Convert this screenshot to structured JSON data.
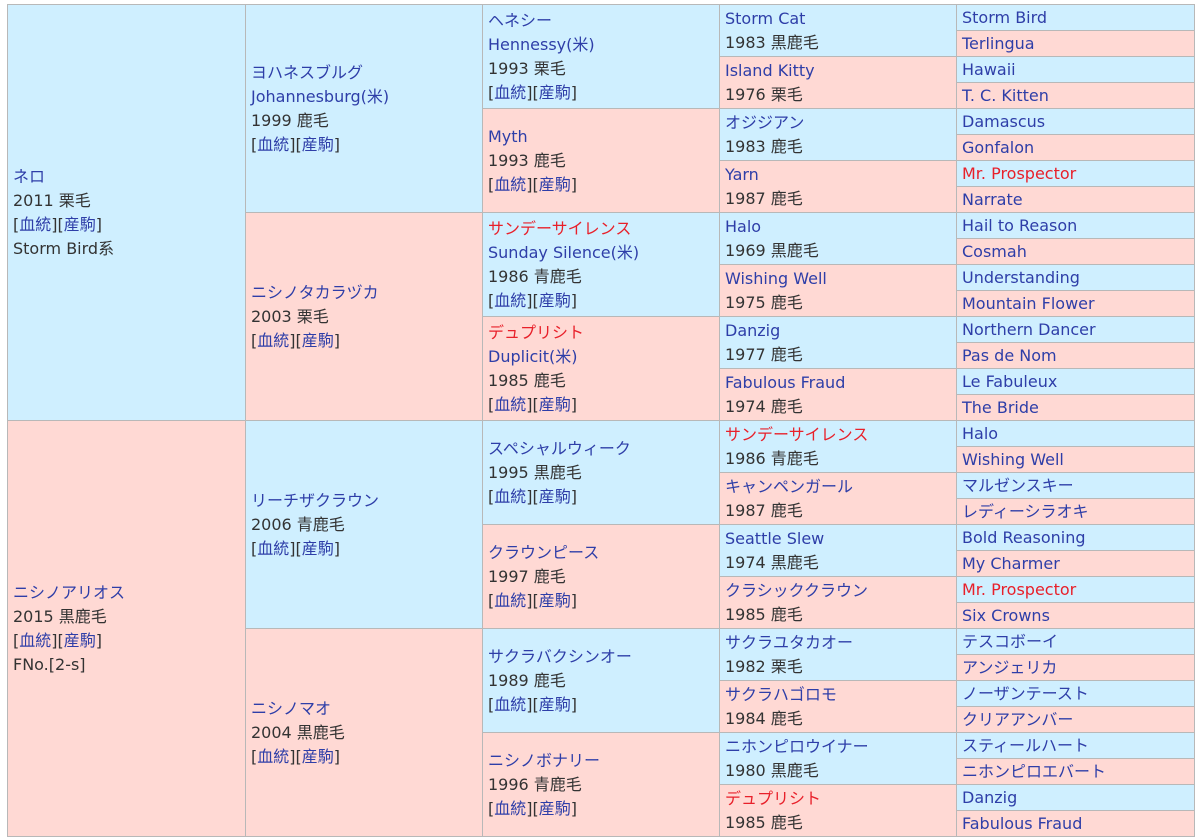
{
  "horse": {
    "sire": {
      "name": "ネロ",
      "info": "2011 栗毛",
      "links": [
        "血統",
        "産駒"
      ],
      "note": "Storm Bird系",
      "sire": {
        "name": "ヨハネスブルグ",
        "alt": "Johannesburg(米)",
        "info": "1999 鹿毛",
        "links": [
          "血統",
          "産駒"
        ],
        "sire": {
          "name": "ヘネシー",
          "alt": "Hennessy(米)",
          "info": "1993 栗毛",
          "links": [
            "血統",
            "産駒"
          ],
          "sire": {
            "name": "Storm Cat",
            "info": "1983 黒鹿毛",
            "sire": "Storm Bird",
            "dam": "Terlingua"
          },
          "dam": {
            "name": "Island Kitty",
            "info": "1976 栗毛",
            "sire": "Hawaii",
            "dam": "T. C. Kitten"
          }
        },
        "dam": {
          "name": "Myth",
          "info": "1993 鹿毛",
          "links": [
            "血統",
            "産駒"
          ],
          "sire": {
            "name": "オジジアン",
            "info": "1983 鹿毛",
            "sire": "Damascus",
            "dam": "Gonfalon"
          },
          "dam": {
            "name": "Yarn",
            "info": "1987 鹿毛",
            "sire": "Mr. Prospector",
            "dam": "Narrate"
          }
        }
      },
      "dam": {
        "name": "ニシノタカラヅカ",
        "info": "2003 栗毛",
        "links": [
          "血統",
          "産駒"
        ],
        "sire": {
          "name": "サンデーサイレンス",
          "alt": "Sunday Silence(米)",
          "info": "1986 青鹿毛",
          "links": [
            "血統",
            "産駒"
          ],
          "sire": {
            "name": "Halo",
            "info": "1969 黒鹿毛",
            "sire": "Hail to Reason",
            "dam": "Cosmah"
          },
          "dam": {
            "name": "Wishing Well",
            "info": "1975 鹿毛",
            "sire": "Understanding",
            "dam": "Mountain Flower"
          }
        },
        "dam": {
          "name": "デュプリシト",
          "alt": "Duplicit(米)",
          "info": "1985 鹿毛",
          "links": [
            "血統",
            "産駒"
          ],
          "sire": {
            "name": "Danzig",
            "info": "1977 鹿毛",
            "sire": "Northern Dancer",
            "dam": "Pas de Nom"
          },
          "dam": {
            "name": "Fabulous Fraud",
            "info": "1974 鹿毛",
            "sire": "Le Fabuleux",
            "dam": "The Bride"
          }
        }
      }
    },
    "dam": {
      "name": "ニシノアリオス",
      "info": "2015 黒鹿毛",
      "links": [
        "血統",
        "産駒"
      ],
      "note": "FNo.[2-s]",
      "sire": {
        "name": "リーチザクラウン",
        "info": "2006 青鹿毛",
        "links": [
          "血統",
          "産駒"
        ],
        "sire": {
          "name": "スペシャルウィーク",
          "info": "1995 黒鹿毛",
          "links": [
            "血統",
            "産駒"
          ],
          "sire": {
            "name": "サンデーサイレンス",
            "info": "1986 青鹿毛",
            "sire": "Halo",
            "dam": "Wishing Well"
          },
          "dam": {
            "name": "キャンペンガール",
            "info": "1987 鹿毛",
            "sire": "マルゼンスキー",
            "dam": "レディーシラオキ"
          }
        },
        "dam": {
          "name": "クラウンピース",
          "info": "1997 鹿毛",
          "links": [
            "血統",
            "産駒"
          ],
          "sire": {
            "name": "Seattle Slew",
            "info": "1974 黒鹿毛",
            "sire": "Bold Reasoning",
            "dam": "My Charmer"
          },
          "dam": {
            "name": "クラシッククラウン",
            "info": "1985 鹿毛",
            "sire": "Mr. Prospector",
            "dam": "Six Crowns"
          }
        }
      },
      "dam": {
        "name": "ニシノマオ",
        "info": "2004 黒鹿毛",
        "links": [
          "血統",
          "産駒"
        ],
        "sire": {
          "name": "サクラバクシンオー",
          "info": "1989 鹿毛",
          "links": [
            "血統",
            "産駒"
          ],
          "sire": {
            "name": "サクラユタカオー",
            "info": "1982 栗毛",
            "sire": "テスコボーイ",
            "dam": "アンジェリカ"
          },
          "dam": {
            "name": "サクラハゴロモ",
            "info": "1984 鹿毛",
            "sire": "ノーザンテースト",
            "dam": "クリアアンバー"
          }
        },
        "dam": {
          "name": "ニシノボナリー",
          "info": "1996 青鹿毛",
          "links": [
            "血統",
            "産駒"
          ],
          "sire": {
            "name": "ニホンピロウイナー",
            "info": "1980 黒鹿毛",
            "sire": "スティールハート",
            "dam": "ニホンピロエバート"
          },
          "dam": {
            "name": "デュプリシト",
            "info": "1985 鹿毛",
            "sire": "Danzig",
            "dam": "Fabulous Fraud"
          }
        }
      }
    }
  },
  "highlight_names": [
    "サンデーサイレンス",
    "デュプリシト",
    "Mr. Prospector"
  ],
  "colors": {
    "male_bg": "#cfefff",
    "female_bg": "#ffd9d4",
    "link": "#2e3ea8",
    "highlight": "#e8202a",
    "border": "#b8b8b8"
  }
}
